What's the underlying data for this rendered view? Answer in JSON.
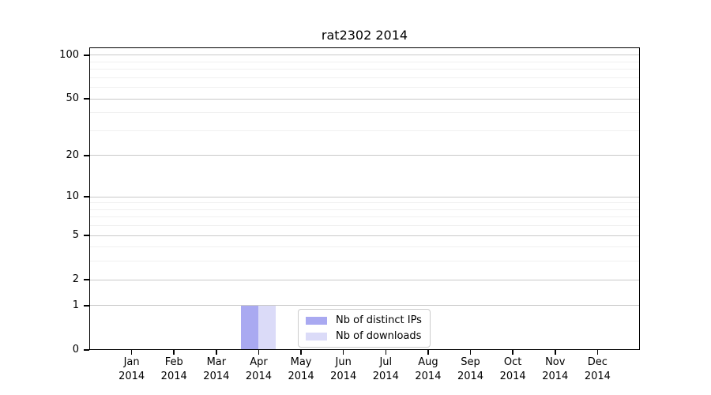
{
  "chart_data": {
    "type": "bar",
    "title": "rat2302 2014",
    "categories": [
      "Jan",
      "Feb",
      "Mar",
      "Apr",
      "May",
      "Jun",
      "Jul",
      "Aug",
      "Sep",
      "Oct",
      "Nov",
      "Dec"
    ],
    "x_year_label": "2014",
    "series": [
      {
        "name": "Nb of distinct IPs",
        "color": "#a9a9f1",
        "values": [
          0,
          0,
          0,
          1,
          0,
          0,
          0,
          0,
          0,
          0,
          0,
          0
        ]
      },
      {
        "name": "Nb of downloads",
        "color": "#dbdbf8",
        "values": [
          0,
          0,
          0,
          1,
          0,
          0,
          0,
          0,
          0,
          0,
          0,
          0
        ]
      }
    ],
    "y_scale": "log10(1+x)",
    "y_ticks": [
      0,
      1,
      2,
      5,
      10,
      20,
      50,
      100
    ],
    "y_minor_ticks": [
      3,
      4,
      6,
      7,
      8,
      9,
      30,
      40,
      60,
      70,
      80,
      90
    ],
    "ylim": [
      0,
      113
    ],
    "xlabel": "",
    "ylabel": "",
    "grid": "horizontal",
    "legend": {
      "position": "lower center"
    }
  }
}
